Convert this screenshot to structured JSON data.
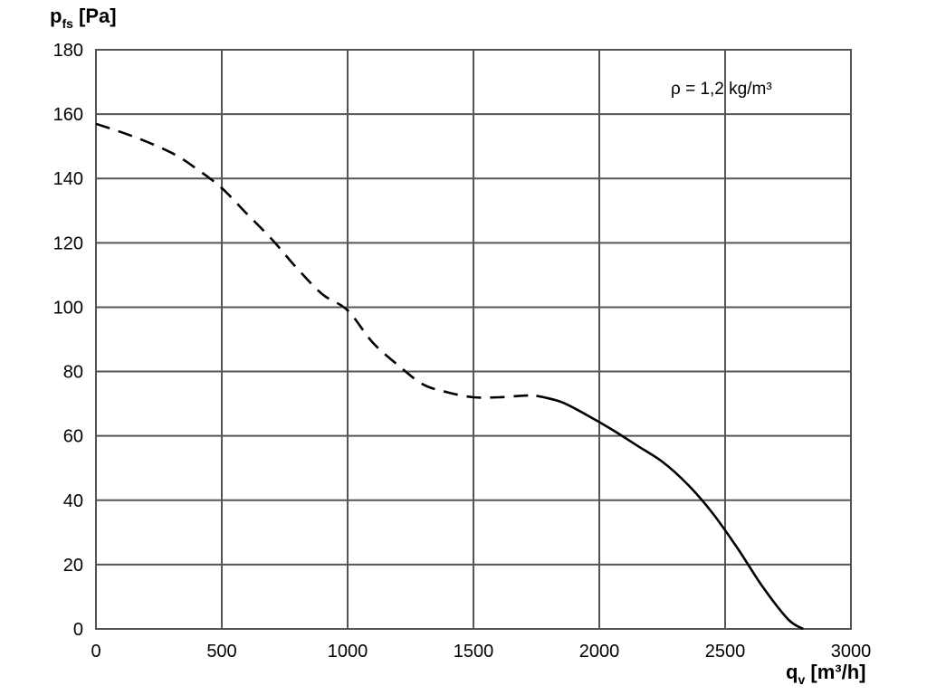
{
  "chart_data": {
    "type": "line",
    "title": "",
    "ylabel": {
      "main": "p",
      "sub": "fs",
      "unit": " [Pa]"
    },
    "xlabel": {
      "main": "q",
      "sub": "v",
      "unit": " [m³/h]"
    },
    "xlim": [
      0,
      3000
    ],
    "ylim": [
      0,
      180
    ],
    "xticks": [
      0,
      500,
      1000,
      1500,
      2000,
      2500,
      3000
    ],
    "yticks": [
      0,
      20,
      40,
      60,
      80,
      100,
      120,
      140,
      160,
      180
    ],
    "grid": true,
    "annotation": "ρ = 1,2 kg/m³",
    "series": [
      {
        "style": "dashed",
        "color": "#000000",
        "points": [
          [
            0,
            157
          ],
          [
            150,
            153
          ],
          [
            300,
            148
          ],
          [
            400,
            143
          ],
          [
            500,
            137
          ],
          [
            600,
            129
          ],
          [
            700,
            121
          ],
          [
            800,
            112
          ],
          [
            900,
            104
          ],
          [
            1000,
            99
          ],
          [
            1100,
            89
          ],
          [
            1200,
            82
          ],
          [
            1300,
            76
          ],
          [
            1400,
            73.5
          ],
          [
            1500,
            72
          ],
          [
            1600,
            72
          ],
          [
            1700,
            72.5
          ],
          [
            1750,
            72.5
          ]
        ]
      },
      {
        "style": "solid",
        "color": "#000000",
        "points": [
          [
            1750,
            72.5
          ],
          [
            1850,
            70.5
          ],
          [
            1950,
            66.5
          ],
          [
            2050,
            62
          ],
          [
            2150,
            57
          ],
          [
            2250,
            52
          ],
          [
            2350,
            45
          ],
          [
            2450,
            36
          ],
          [
            2550,
            25
          ],
          [
            2650,
            13
          ],
          [
            2750,
            3
          ],
          [
            2810,
            0
          ]
        ]
      }
    ]
  },
  "colors": {
    "grid": "#555555",
    "frame": "#555555",
    "curve": "#000000"
  }
}
